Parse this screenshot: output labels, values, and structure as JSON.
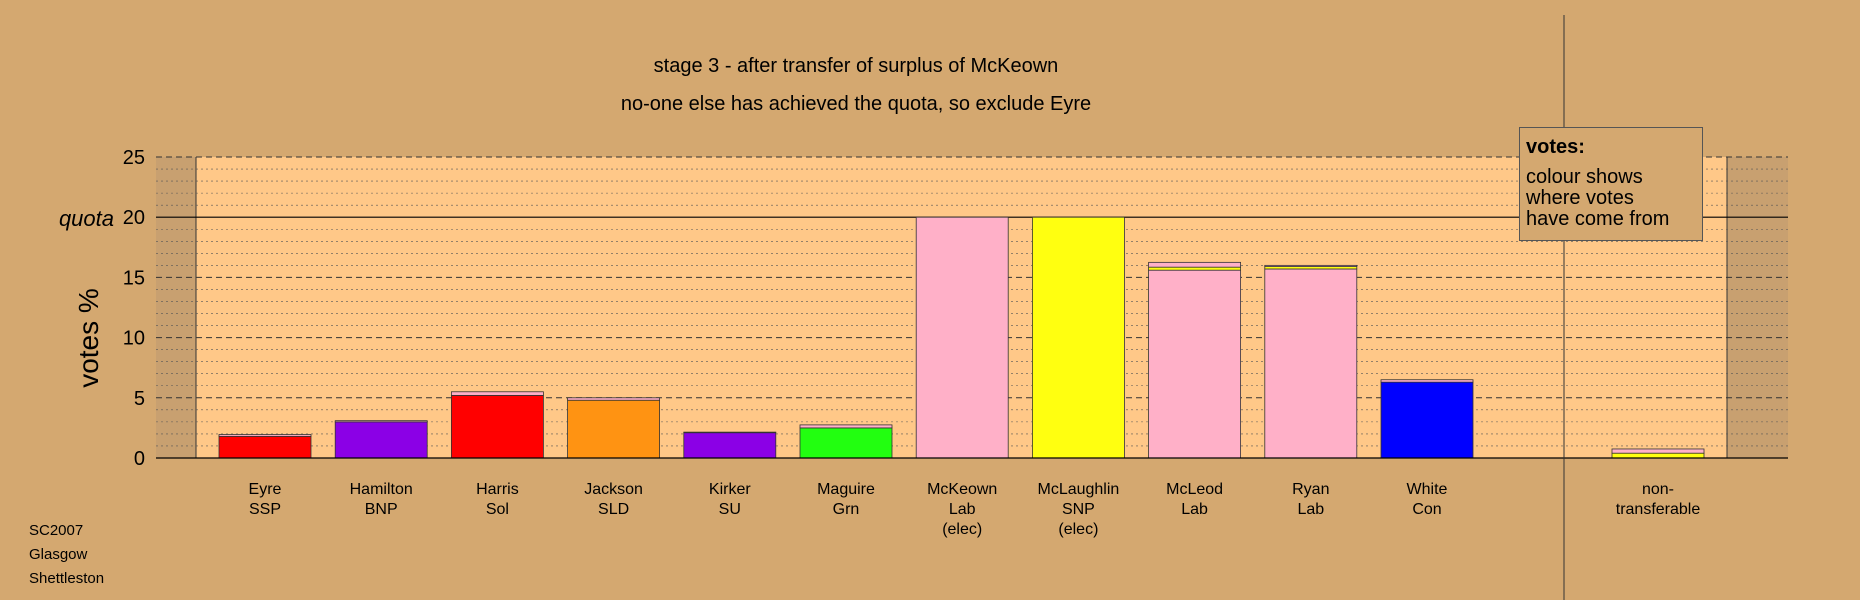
{
  "chart_data": {
    "type": "bar",
    "title": "stage 3 - after transfer of surplus of McKeown",
    "subtitle": "no-one else has achieved the quota, so exclude Eyre",
    "ylabel": "votes %",
    "quota_label": "quota",
    "quota": 20,
    "ylim": [
      0,
      25
    ],
    "yticks": [
      "0",
      "5",
      "10",
      "15",
      "20",
      "25"
    ],
    "grid": "dashed every 5, dotted every 1",
    "categories": [
      {
        "lines": [
          "Eyre",
          "SSP"
        ],
        "segments": [
          {
            "value": 1.8,
            "color": "#ff0000"
          },
          {
            "value": 0.15,
            "color": "#ffb0c8"
          }
        ]
      },
      {
        "lines": [
          "Hamilton",
          "BNP"
        ],
        "segments": [
          {
            "value": 3.0,
            "color": "#8b00e6"
          },
          {
            "value": 0.1,
            "color": "#ffb0c8"
          }
        ]
      },
      {
        "lines": [
          "Harris",
          "Sol"
        ],
        "segments": [
          {
            "value": 5.2,
            "color": "#ff0000"
          },
          {
            "value": 0.3,
            "color": "#ffb0c8"
          }
        ]
      },
      {
        "lines": [
          "Jackson",
          "SLD"
        ],
        "segments": [
          {
            "value": 4.8,
            "color": "#ff9312"
          },
          {
            "value": 0.2,
            "color": "#ffb0c8"
          }
        ]
      },
      {
        "lines": [
          "Kirker",
          "SU"
        ],
        "segments": [
          {
            "value": 2.1,
            "color": "#8b00e6"
          },
          {
            "value": 0.05,
            "color": "#ffb0c8"
          }
        ]
      },
      {
        "lines": [
          "Maguire",
          "Grn"
        ],
        "segments": [
          {
            "value": 2.5,
            "color": "#22ff10"
          },
          {
            "value": 0.25,
            "color": "#ffb0c8"
          }
        ]
      },
      {
        "lines": [
          "McKeown",
          "Lab",
          "(elec)"
        ],
        "segments": [
          {
            "value": 20.0,
            "color": "#ffb0c8"
          }
        ]
      },
      {
        "lines": [
          "McLaughlin",
          "SNP",
          "(elec)"
        ],
        "segments": [
          {
            "value": 20.0,
            "color": "#ffff10"
          }
        ]
      },
      {
        "lines": [
          "McLeod",
          "Lab"
        ],
        "segments": [
          {
            "value": 15.6,
            "color": "#ffb0c8"
          },
          {
            "value": 0.25,
            "color": "#ffff10"
          },
          {
            "value": 0.4,
            "color": "#ffb0c8"
          }
        ]
      },
      {
        "lines": [
          "Ryan",
          "Lab"
        ],
        "segments": [
          {
            "value": 15.7,
            "color": "#ffb0c8"
          },
          {
            "value": 0.2,
            "color": "#ffff10"
          },
          {
            "value": 0.1,
            "color": "#ffb0c8"
          }
        ]
      },
      {
        "lines": [
          "White",
          "Con"
        ],
        "segments": [
          {
            "value": 6.3,
            "color": "#0000ff"
          },
          {
            "value": 0.2,
            "color": "#ffb0c8"
          }
        ]
      }
    ],
    "nontransferable": {
      "lines": [
        "non-",
        "transferable"
      ],
      "segments": [
        {
          "value": 0.4,
          "color": "#ffff10"
        },
        {
          "value": 0.35,
          "color": "#ffb0c8"
        }
      ]
    }
  },
  "legend": {
    "title": "votes:",
    "lines": [
      "colour shows",
      "where votes",
      "have come from"
    ]
  },
  "footer": {
    "lines": [
      "SC2007",
      "Glasgow",
      "Shettleston"
    ]
  },
  "colors": {
    "background": "#d4a870",
    "plot_area": "#ffc888",
    "plot_edge_shade": "#c8a070"
  }
}
